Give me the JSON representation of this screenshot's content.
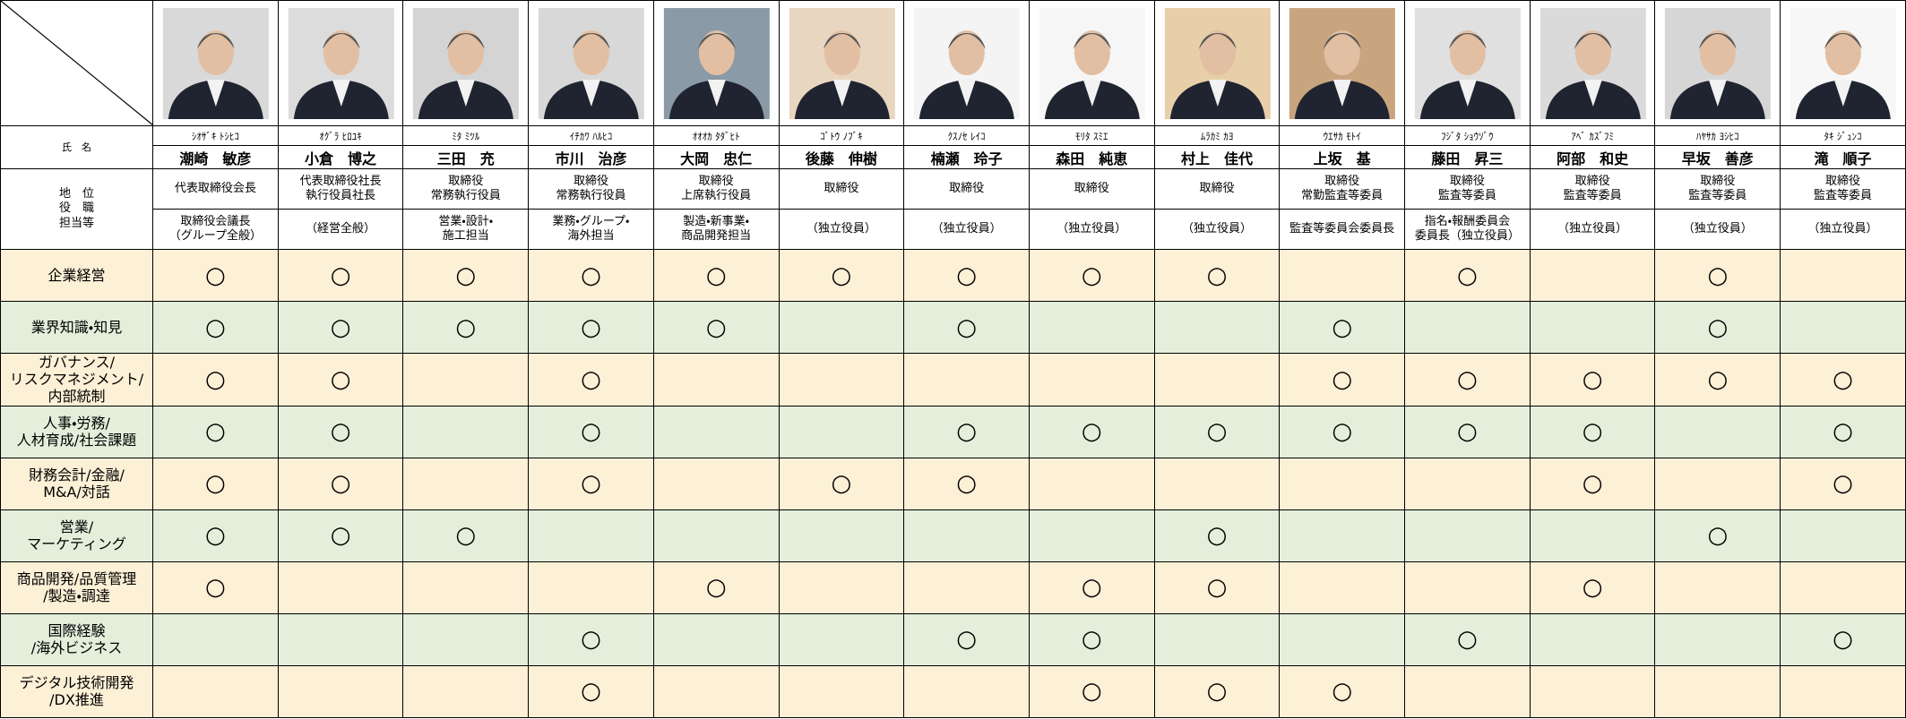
{
  "header": {
    "name_label": "氏　名",
    "position_label": "地　位\n役　職\n担当等"
  },
  "people": [
    {
      "kana": "ｼｵｻﾞｷ ﾄｼﾋｺ",
      "name": "潮崎　敏彦",
      "position": "代表取締役会長",
      "role": "取締役会議長\n（グループ全般）"
    },
    {
      "kana": "ｵｸﾞﾗ ﾋﾛﾕｷ",
      "name": "小倉　博之",
      "position": "代表取締役社長\n執行役員社長",
      "role": "（経営全般）"
    },
    {
      "kana": "ﾐﾀ ﾐﾂﾙ",
      "name": "三田　充",
      "position": "取締役\n常務執行役員",
      "role": "営業・設計・\n施工担当"
    },
    {
      "kana": "ｲﾁｶﾜ ﾊﾙﾋｺ",
      "name": "市川　治彦",
      "position": "取締役\n常務執行役員",
      "role": "業務・グループ・\n海外担当"
    },
    {
      "kana": "ｵｵｵｶ ﾀﾀﾞﾋﾄ",
      "name": "大岡　忠仁",
      "position": "取締役\n上席執行役員",
      "role": "製造・新事業・\n商品開発担当"
    },
    {
      "kana": "ｺﾞﾄｳ ﾉﾌﾞｷ",
      "name": "後藤　伸樹",
      "position": "取締役",
      "role": "（独立役員）"
    },
    {
      "kana": "ｸｽﾉｾ ﾚｲｺ",
      "name": "楠瀬　玲子",
      "position": "取締役",
      "role": "（独立役員）"
    },
    {
      "kana": "ﾓﾘﾀ ｽﾐｴ",
      "name": "森田　純恵",
      "position": "取締役",
      "role": "（独立役員）"
    },
    {
      "kana": "ﾑﾗｶﾐ ｶﾖ",
      "name": "村上　佳代",
      "position": "取締役",
      "role": "（独立役員）"
    },
    {
      "kana": "ｳｴｻｶ ﾓﾄｲ",
      "name": "上坂　基",
      "position": "取締役\n常勤監査等委員",
      "role": "監査等委員会委員長"
    },
    {
      "kana": "ﾌｼﾞﾀ ｼｮｳｿﾞｳ",
      "name": "藤田　昇三",
      "position": "取締役\n監査等委員",
      "role": "指名・報酬委員会\n委員長（独立役員）"
    },
    {
      "kana": "ｱﾍﾞ ｶｽﾞﾌﾐ",
      "name": "阿部　和史",
      "position": "取締役\n監査等委員",
      "role": "（独立役員）"
    },
    {
      "kana": "ﾊﾔｻｶ ﾖｼﾋｺ",
      "name": "早坂　善彦",
      "position": "取締役\n監査等委員",
      "role": "（独立役員）"
    },
    {
      "kana": "ﾀｷ ｼﾞｭﾝｺ",
      "name": "滝　順子",
      "position": "取締役\n監査等委員",
      "role": "（独立役員）"
    }
  ],
  "skills": [
    {
      "label": "企業経営",
      "marks": [
        "○",
        "○",
        "○",
        "○",
        "○",
        "○",
        "○",
        "○",
        "○",
        null,
        "○",
        null,
        "○",
        null
      ]
    },
    {
      "label": "業界知識・知見",
      "marks": [
        "○",
        "○",
        "○",
        "○",
        "○",
        null,
        "○",
        null,
        null,
        "○",
        null,
        null,
        "○",
        null
      ]
    },
    {
      "label": "ガバナンス/\nリスクマネジメント/\n内部統制",
      "marks": [
        "○",
        "○",
        null,
        "○",
        null,
        null,
        null,
        null,
        null,
        "○",
        "○",
        "○",
        "○",
        "○"
      ]
    },
    {
      "label": "人事・労務/\n人材育成/社会課題",
      "marks": [
        "○",
        "○",
        null,
        "○",
        null,
        null,
        "○",
        "○",
        "○",
        "○",
        "○",
        "○",
        null,
        "○"
      ]
    },
    {
      "label": "財務会計/金融/\nM&A/対話",
      "marks": [
        "○",
        "○",
        null,
        "○",
        null,
        "○",
        "○",
        null,
        null,
        null,
        null,
        "○",
        null,
        "○"
      ]
    },
    {
      "label": "営業/\nマーケティング",
      "marks": [
        "○",
        "○",
        "○",
        null,
        null,
        null,
        null,
        null,
        "○",
        null,
        null,
        null,
        "○",
        null
      ]
    },
    {
      "label": "商品開発/品質管理\n/製造・調達",
      "marks": [
        "○",
        null,
        null,
        null,
        "○",
        null,
        null,
        "○",
        "○",
        null,
        null,
        "○",
        null,
        null
      ]
    },
    {
      "label": "国際経験\n/海外ビジネス",
      "marks": [
        null,
        null,
        null,
        "○",
        null,
        null,
        "○",
        "○",
        null,
        null,
        "○",
        null,
        null,
        "○"
      ]
    },
    {
      "label": "デジタル技術開発\n/DX推進",
      "marks": [
        null,
        null,
        null,
        "○",
        null,
        null,
        null,
        "○",
        "○",
        "○",
        null,
        null,
        null,
        null
      ]
    }
  ]
}
